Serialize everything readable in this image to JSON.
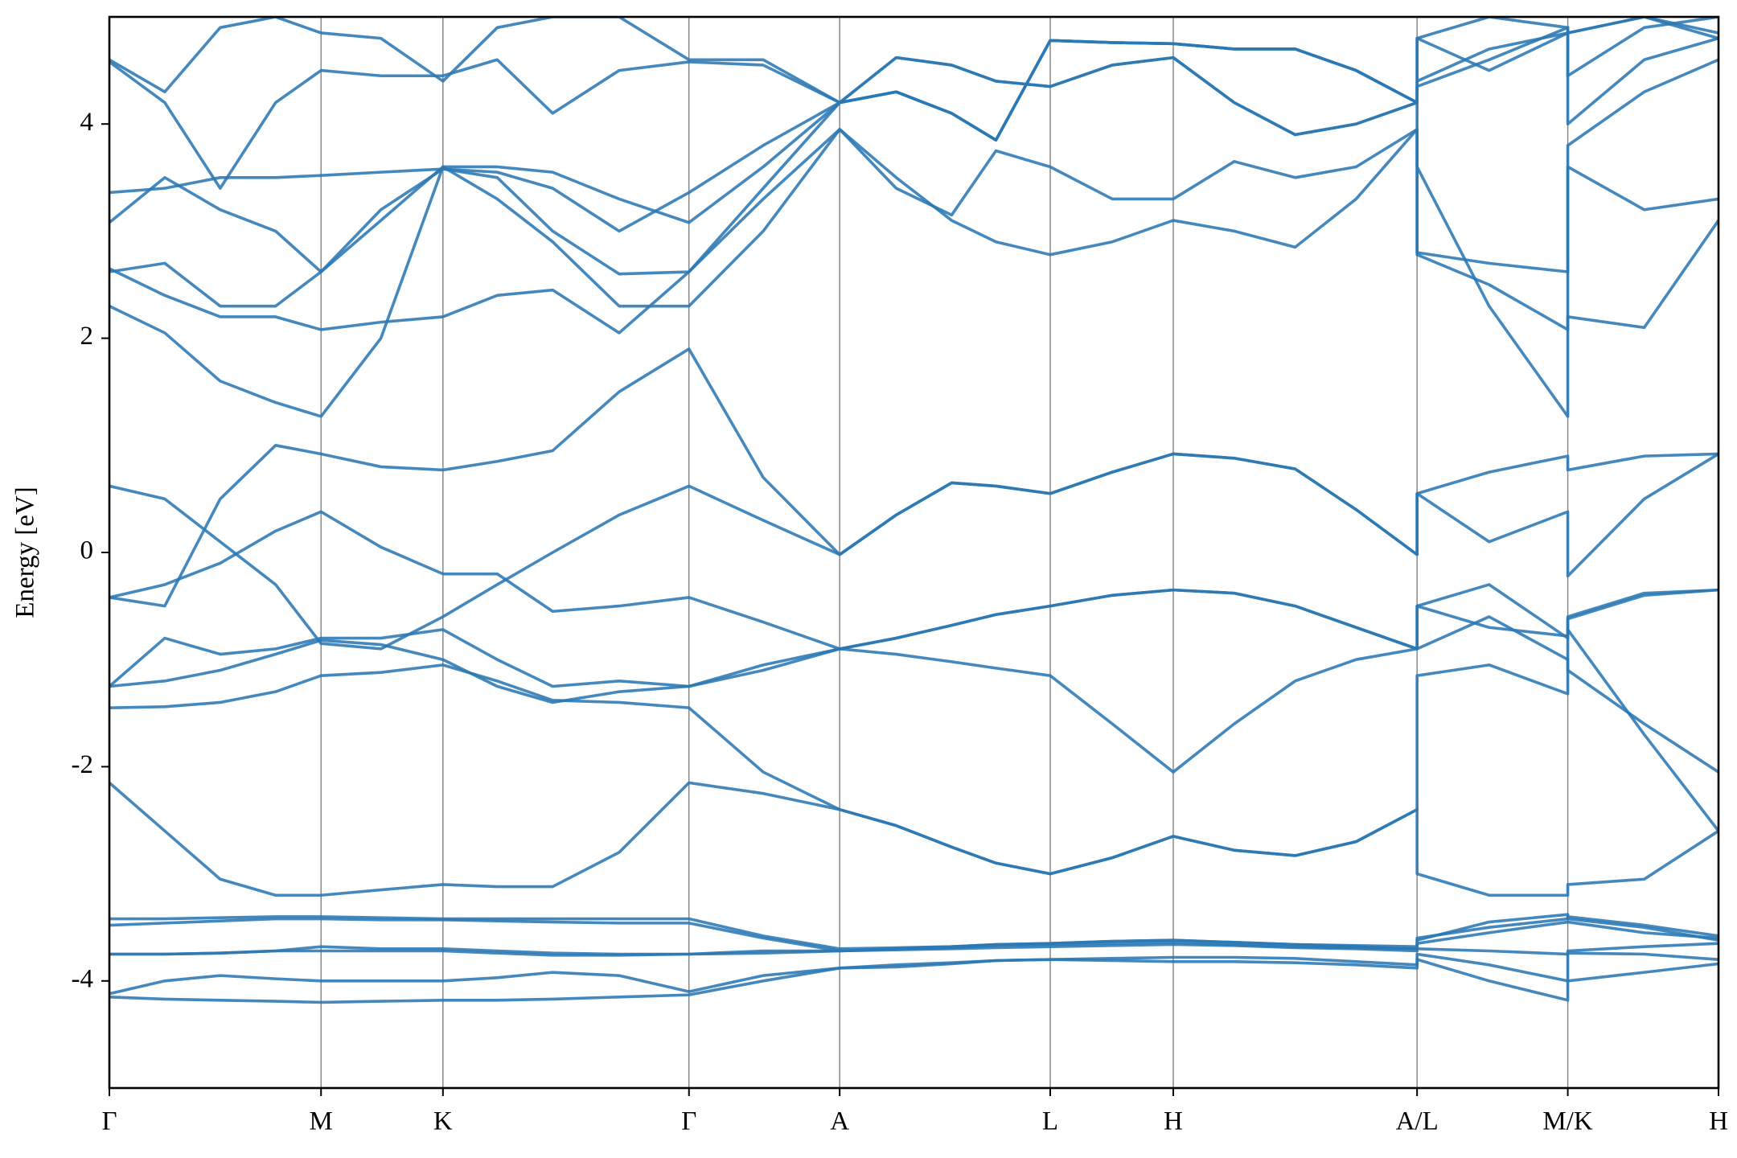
{
  "chart_data": {
    "type": "line",
    "y_label": "Energy [eV]",
    "color": "#2a78b4",
    "grid": "x",
    "xlim": [
      0,
      14.52
    ],
    "xticks": [
      {
        "value": 0,
        "label": "Γ"
      },
      {
        "value": 1.91,
        "label": "M"
      },
      {
        "value": 3.01,
        "label": "K"
      },
      {
        "value": 5.23,
        "label": "Γ"
      },
      {
        "value": 6.59,
        "label": "A"
      },
      {
        "value": 8.49,
        "label": "L"
      },
      {
        "value": 9.6,
        "label": "H"
      },
      {
        "value": 11.8,
        "label": "A/L"
      },
      {
        "value": 13.16,
        "label": "M/K"
      },
      {
        "value": 14.52,
        "label": "H"
      }
    ],
    "ylim": [
      -5,
      5
    ],
    "yticks": [
      -4,
      -2,
      0,
      2,
      4
    ],
    "x": [
      0,
      0.5,
      1.0,
      1.5,
      1.91,
      2.45,
      3.01,
      3.5,
      4.0,
      4.6,
      5.23,
      5.9,
      6.59,
      7.1,
      7.6,
      8.0,
      8.49,
      9.05,
      9.6,
      10.15,
      10.7,
      11.25,
      11.8,
      11.8,
      12.45,
      13.16,
      13.16,
      13.85,
      14.52
    ],
    "series": [
      {
        "values": [
          -4.15,
          -4.17,
          -4.18,
          -4.19,
          -4.2,
          -4.19,
          -4.18,
          -4.18,
          -4.17,
          -4.15,
          -4.13,
          -4.0,
          -3.88,
          -3.87,
          -3.84,
          -3.81,
          -3.8,
          -3.81,
          -3.82,
          -3.82,
          -3.83,
          -3.85,
          -3.88,
          -3.8,
          -4.0,
          -4.18,
          -4.0,
          -3.92,
          -3.84
        ]
      },
      {
        "values": [
          -4.12,
          -4.0,
          -3.95,
          -3.98,
          -4.0,
          -4.0,
          -4.0,
          -3.97,
          -3.92,
          -3.95,
          -4.1,
          -3.95,
          -3.88,
          -3.85,
          -3.83,
          -3.81,
          -3.8,
          -3.79,
          -3.78,
          -3.78,
          -3.79,
          -3.82,
          -3.85,
          -3.75,
          -3.85,
          -4.0,
          -3.74,
          -3.75,
          -3.8
        ]
      },
      {
        "values": [
          -3.75,
          -3.75,
          -3.74,
          -3.72,
          -3.72,
          -3.72,
          -3.72,
          -3.74,
          -3.76,
          -3.76,
          -3.75,
          -3.72,
          -3.72,
          -3.71,
          -3.7,
          -3.69,
          -3.68,
          -3.67,
          -3.66,
          -3.67,
          -3.69,
          -3.7,
          -3.72,
          -3.7,
          -3.72,
          -3.75,
          -3.72,
          -3.68,
          -3.65
        ]
      },
      {
        "values": [
          -3.75,
          -3.75,
          -3.74,
          -3.72,
          -3.68,
          -3.7,
          -3.7,
          -3.72,
          -3.74,
          -3.75,
          -3.75,
          -3.74,
          -3.72,
          -3.7,
          -3.68,
          -3.66,
          -3.65,
          -3.63,
          -3.62,
          -3.64,
          -3.66,
          -3.68,
          -3.7,
          -3.65,
          -3.55,
          -3.45,
          -3.45,
          -3.55,
          -3.6
        ]
      },
      {
        "values": [
          -3.48,
          -3.46,
          -3.44,
          -3.42,
          -3.42,
          -3.43,
          -3.43,
          -3.44,
          -3.45,
          -3.46,
          -3.46,
          -3.6,
          -3.72,
          -3.7,
          -3.69,
          -3.67,
          -3.66,
          -3.65,
          -3.64,
          -3.66,
          -3.68,
          -3.69,
          -3.7,
          -3.62,
          -3.45,
          -3.38,
          -3.42,
          -3.5,
          -3.62
        ]
      },
      {
        "values": [
          -3.42,
          -3.42,
          -3.41,
          -3.4,
          -3.4,
          -3.41,
          -3.42,
          -3.42,
          -3.42,
          -3.42,
          -3.42,
          -3.58,
          -3.7,
          -3.69,
          -3.68,
          -3.66,
          -3.65,
          -3.63,
          -3.62,
          -3.64,
          -3.66,
          -3.67,
          -3.68,
          -3.6,
          -3.5,
          -3.42,
          -3.4,
          -3.48,
          -3.58
        ]
      },
      {
        "values": [
          -2.15,
          -2.6,
          -3.05,
          -3.2,
          -3.2,
          -3.15,
          -3.1,
          -3.12,
          -3.12,
          -2.8,
          -2.15,
          -2.25,
          -2.4,
          -2.55,
          -2.75,
          -2.9,
          -3.0,
          -2.85,
          -2.65,
          -2.78,
          -2.83,
          -2.7,
          -2.4,
          -3.0,
          -3.2,
          -3.2,
          -3.1,
          -3.05,
          -2.6
        ]
      },
      {
        "values": [
          -1.45,
          -1.44,
          -1.4,
          -1.3,
          -1.15,
          -1.12,
          -1.05,
          -1.2,
          -1.38,
          -1.4,
          -1.45,
          -2.05,
          -2.4,
          -2.55,
          -2.75,
          -2.9,
          -3.0,
          -2.85,
          -2.65,
          -2.78,
          -2.83,
          -2.7,
          -2.4,
          -1.15,
          -1.05,
          -1.32,
          -0.72,
          -1.7,
          -2.6
        ]
      },
      {
        "values": [
          -1.25,
          -1.2,
          -1.1,
          -0.95,
          -0.82,
          -0.86,
          -1.0,
          -1.25,
          -1.4,
          -1.3,
          -1.25,
          -1.05,
          -0.9,
          -0.95,
          -1.02,
          -1.08,
          -1.15,
          -1.6,
          -2.05,
          -1.6,
          -1.2,
          -1.0,
          -0.9,
          -0.9,
          -0.6,
          -1.0,
          -1.1,
          -1.6,
          -2.05
        ]
      },
      {
        "values": [
          -1.25,
          -0.8,
          -0.95,
          -0.9,
          -0.8,
          -0.8,
          -0.72,
          -1.0,
          -1.25,
          -1.2,
          -1.25,
          -1.1,
          -0.9,
          -0.8,
          -0.68,
          -0.58,
          -0.5,
          -0.4,
          -0.35,
          -0.38,
          -0.5,
          -0.7,
          -0.9,
          -0.5,
          -0.7,
          -0.78,
          -0.62,
          -0.4,
          -0.35
        ]
      },
      {
        "values": [
          -0.42,
          -0.3,
          -0.1,
          0.2,
          0.38,
          0.05,
          -0.2,
          -0.2,
          -0.55,
          -0.5,
          -0.42,
          -0.65,
          -0.9,
          -0.8,
          -0.68,
          -0.58,
          -0.5,
          -0.4,
          -0.35,
          -0.38,
          -0.5,
          -0.7,
          -0.9,
          -0.5,
          -0.3,
          -0.8,
          -0.6,
          -0.38,
          -0.35
        ]
      },
      {
        "values": [
          0.62,
          0.5,
          0.1,
          -0.3,
          -0.85,
          -0.9,
          -0.6,
          -0.3,
          0.0,
          0.35,
          0.62,
          0.3,
          -0.02,
          0.35,
          0.65,
          0.62,
          0.55,
          0.75,
          0.92,
          0.88,
          0.78,
          0.4,
          -0.02,
          0.55,
          0.1,
          0.38,
          -0.22,
          0.5,
          0.92
        ]
      },
      {
        "values": [
          -0.42,
          -0.5,
          0.5,
          1.0,
          0.92,
          0.8,
          0.77,
          0.85,
          0.95,
          1.5,
          1.9,
          0.7,
          -0.02,
          0.35,
          0.65,
          0.62,
          0.55,
          0.75,
          0.92,
          0.88,
          0.78,
          0.4,
          -0.02,
          0.55,
          0.75,
          0.9,
          0.77,
          0.9,
          0.92
        ]
      },
      {
        "values": [
          2.3,
          2.05,
          1.6,
          1.4,
          1.27,
          2.0,
          3.6,
          3.3,
          2.9,
          2.3,
          2.3,
          3.0,
          3.95,
          3.5,
          3.1,
          2.9,
          2.78,
          2.9,
          3.1,
          3.0,
          2.85,
          3.3,
          3.95,
          3.6,
          2.3,
          1.27,
          2.2,
          2.1,
          3.1
        ]
      },
      {
        "values": [
          2.65,
          2.4,
          2.2,
          2.2,
          2.08,
          2.15,
          2.2,
          2.4,
          2.45,
          2.05,
          2.62,
          3.3,
          3.95,
          3.4,
          3.15,
          3.75,
          3.6,
          3.3,
          3.3,
          3.65,
          3.5,
          3.6,
          3.95,
          2.78,
          2.5,
          2.08,
          3.6,
          3.2,
          3.3
        ]
      },
      {
        "values": [
          2.62,
          2.7,
          2.3,
          2.3,
          2.62,
          3.2,
          3.58,
          3.5,
          3.0,
          2.6,
          2.62,
          3.4,
          4.2,
          4.3,
          4.1,
          3.85,
          4.78,
          4.76,
          4.75,
          4.7,
          4.7,
          4.5,
          4.2,
          2.8,
          2.7,
          2.62,
          3.8,
          4.3,
          4.6
        ]
      },
      {
        "values": [
          3.08,
          3.5,
          3.2,
          3.0,
          2.62,
          3.1,
          3.6,
          3.6,
          3.55,
          3.3,
          3.08,
          3.6,
          4.2,
          4.62,
          4.55,
          4.4,
          4.35,
          4.55,
          4.62,
          4.2,
          3.9,
          4.0,
          4.2,
          4.35,
          4.6,
          4.9,
          4.0,
          4.6,
          4.8
        ]
      },
      {
        "values": [
          3.36,
          3.4,
          3.5,
          3.5,
          3.52,
          3.55,
          3.58,
          3.55,
          3.4,
          3.0,
          3.36,
          3.8,
          4.2,
          4.62,
          4.55,
          4.4,
          4.35,
          4.55,
          4.62,
          4.2,
          3.9,
          4.0,
          4.2,
          4.4,
          4.7,
          4.85,
          4.45,
          4.9,
          5.0
        ]
      },
      {
        "values": [
          4.58,
          4.2,
          3.4,
          4.2,
          4.5,
          4.45,
          4.45,
          4.6,
          4.1,
          4.5,
          4.58,
          4.55,
          4.2,
          4.3,
          4.1,
          3.85,
          4.78,
          4.76,
          4.75,
          4.7,
          4.7,
          4.5,
          4.2,
          4.8,
          4.5,
          4.85,
          4.85,
          5.0,
          4.8
        ]
      },
      {
        "values": [
          4.6,
          4.3,
          4.9,
          5.0,
          4.85,
          4.8,
          4.4,
          4.9,
          5.0,
          5.0,
          4.6,
          4.6,
          4.2,
          4.3,
          4.1,
          3.85,
          4.78,
          4.76,
          4.75,
          4.7,
          4.7,
          4.5,
          4.2,
          4.8,
          5.0,
          4.9,
          4.85,
          5.0,
          4.85
        ]
      }
    ]
  }
}
